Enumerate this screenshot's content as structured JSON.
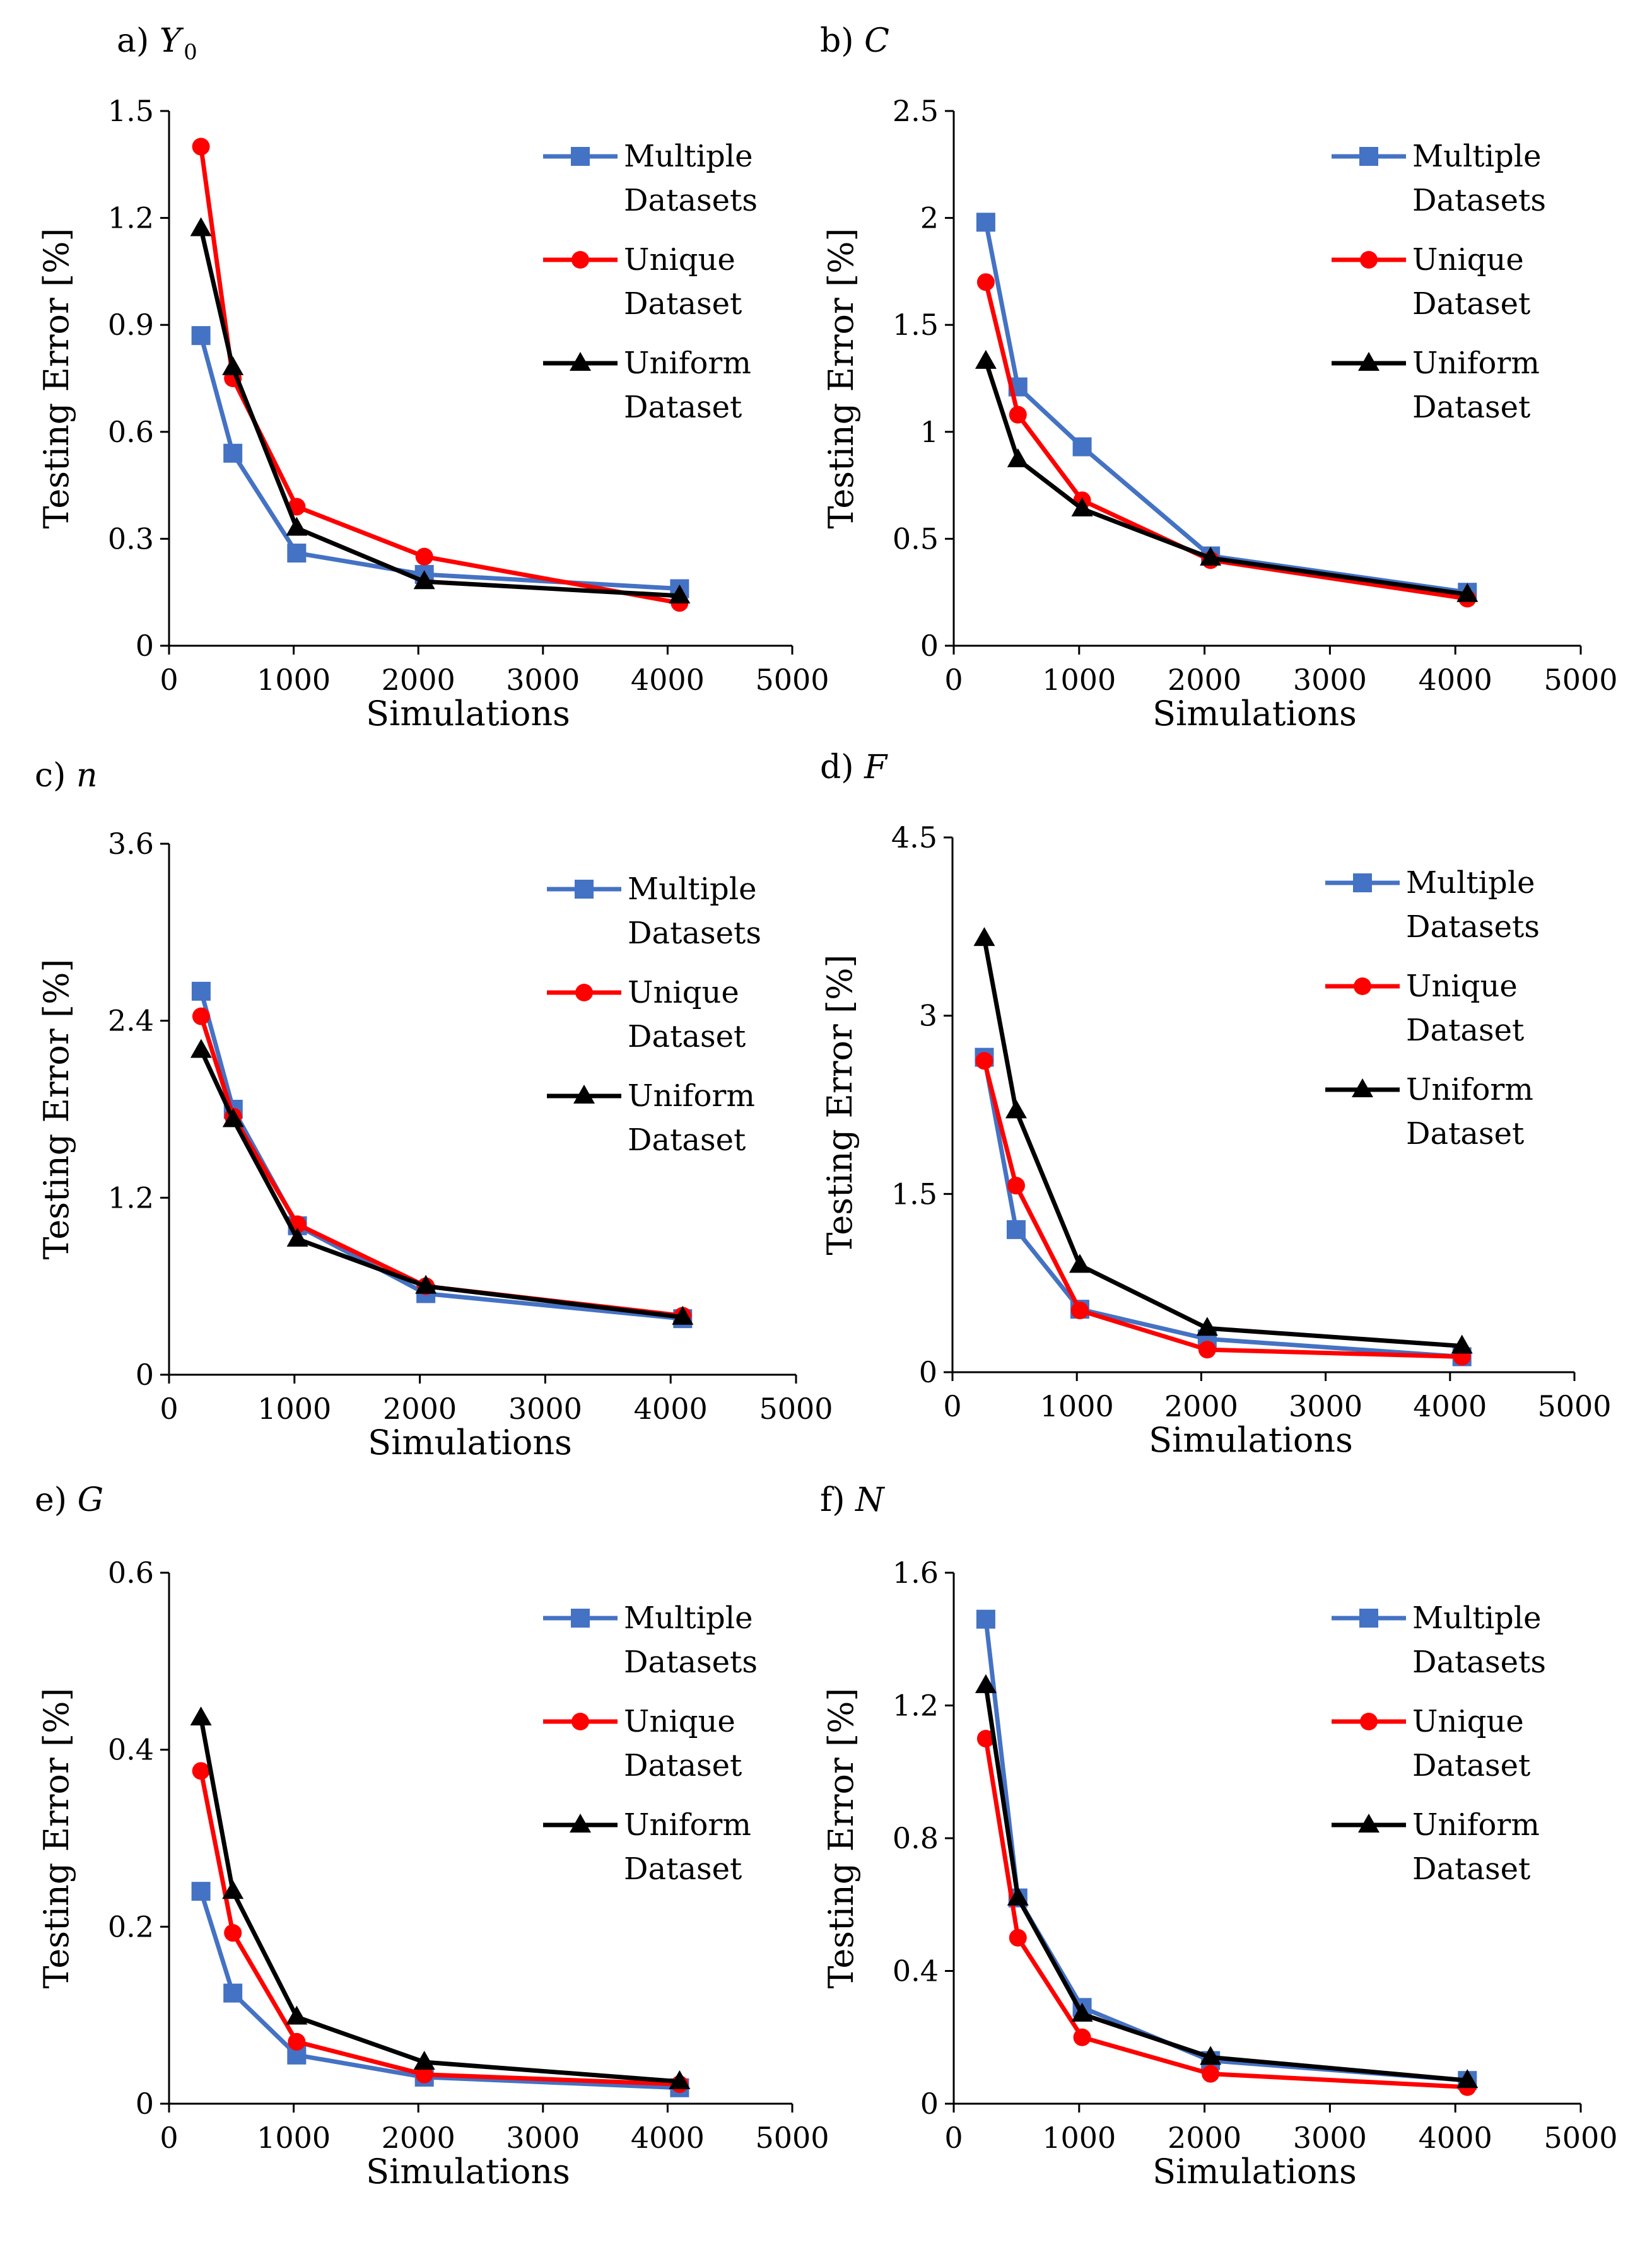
{
  "legend_entries": [
    {
      "line1": "Multiple",
      "line2": "Datasets",
      "color": "#4472C4",
      "marker": "square"
    },
    {
      "line1": "Unique",
      "line2": "Dataset",
      "color": "#FF0000",
      "marker": "circle"
    },
    {
      "line1": "Uniform",
      "line2": "Dataset",
      "color": "#000000",
      "marker": "triangle"
    }
  ],
  "chart_data": [
    {
      "type": "line",
      "panel_label": "a)",
      "parameter": "Y",
      "parameter_sub": "0",
      "xlabel": "Simulations",
      "ylabel": "Testing Error [%]",
      "xlim": [
        0,
        5000
      ],
      "xticks": [
        "0",
        "1000",
        "2000",
        "3000",
        "4000",
        "5000"
      ],
      "ylim": [
        0,
        1.5
      ],
      "yticks": [
        "0",
        "0.3",
        "0.6",
        "0.9",
        "1.2",
        "1.5"
      ],
      "x": [
        256,
        512,
        1024,
        2048,
        4096
      ],
      "series": [
        {
          "name": "Multiple Datasets",
          "values": [
            0.87,
            0.54,
            0.26,
            0.2,
            0.16
          ]
        },
        {
          "name": "Unique Dataset",
          "values": [
            1.4,
            0.75,
            0.39,
            0.25,
            0.12
          ]
        },
        {
          "name": "Uniform Dataset",
          "values": [
            1.17,
            0.78,
            0.33,
            0.18,
            0.14
          ]
        }
      ]
    },
    {
      "type": "line",
      "panel_label": "b)",
      "parameter": "C",
      "parameter_sub": "",
      "xlabel": "Simulations",
      "ylabel": "Testing Error [%]",
      "xlim": [
        0,
        5000
      ],
      "xticks": [
        "0",
        "1000",
        "2000",
        "3000",
        "4000",
        "5000"
      ],
      "ylim": [
        0,
        2.5
      ],
      "yticks": [
        "0",
        "0.5",
        "1",
        "1.5",
        "2",
        "2.5"
      ],
      "x": [
        256,
        512,
        1024,
        2048,
        4096
      ],
      "series": [
        {
          "name": "Multiple Datasets",
          "values": [
            1.98,
            1.21,
            0.93,
            0.42,
            0.25
          ]
        },
        {
          "name": "Unique Dataset",
          "values": [
            1.7,
            1.08,
            0.68,
            0.4,
            0.22
          ]
        },
        {
          "name": "Uniform Dataset",
          "values": [
            1.33,
            0.87,
            0.64,
            0.41,
            0.24
          ]
        }
      ]
    },
    {
      "type": "line",
      "panel_label": "c)",
      "parameter": "n",
      "parameter_sub": "",
      "xlabel": "Simulations",
      "ylabel": "Testing Error [%]",
      "xlim": [
        0,
        5000
      ],
      "xticks": [
        "0",
        "1000",
        "2000",
        "3000",
        "4000",
        "5000"
      ],
      "ylim": [
        0,
        3.6
      ],
      "yticks": [
        "0",
        "1.2",
        "2.4",
        "3.6"
      ],
      "x": [
        256,
        512,
        1024,
        2048,
        4096
      ],
      "series": [
        {
          "name": "Multiple Datasets",
          "values": [
            2.6,
            1.8,
            1.01,
            0.55,
            0.38
          ]
        },
        {
          "name": "Unique Dataset",
          "values": [
            2.43,
            1.75,
            1.02,
            0.6,
            0.4
          ]
        },
        {
          "name": "Uniform Dataset",
          "values": [
            2.2,
            1.73,
            0.92,
            0.6,
            0.39
          ]
        }
      ]
    },
    {
      "type": "line",
      "panel_label": "d)",
      "parameter": "F",
      "parameter_sub": "",
      "xlabel": "Simulations",
      "ylabel": "Testing Error [%]",
      "xlim": [
        0,
        5000
      ],
      "xticks": [
        "0",
        "1000",
        "2000",
        "3000",
        "4000",
        "5000"
      ],
      "ylim": [
        0,
        4.5
      ],
      "yticks": [
        "0",
        "1.5",
        "3",
        "4.5"
      ],
      "x": [
        256,
        512,
        1024,
        2048,
        4096
      ],
      "series": [
        {
          "name": "Multiple Datasets",
          "values": [
            2.65,
            1.2,
            0.53,
            0.28,
            0.13
          ]
        },
        {
          "name": "Unique Dataset",
          "values": [
            2.62,
            1.57,
            0.52,
            0.19,
            0.13
          ]
        },
        {
          "name": "Uniform Dataset",
          "values": [
            3.65,
            2.2,
            0.9,
            0.37,
            0.22
          ]
        }
      ]
    },
    {
      "type": "line",
      "panel_label": "e)",
      "parameter": "G",
      "parameter_sub": "",
      "xlabel": "Simulations",
      "ylabel": "Testing Error [%]",
      "xlim": [
        0,
        5000
      ],
      "xticks": [
        "0",
        "1000",
        "2000",
        "3000",
        "4000",
        "5000"
      ],
      "ylim": [
        0,
        0.6
      ],
      "yticks": [
        "0",
        "0.2",
        "0.4",
        "0.6"
      ],
      "x": [
        256,
        512,
        1024,
        2048,
        4096
      ],
      "series": [
        {
          "name": "Multiple Datasets",
          "values": [
            0.24,
            0.125,
            0.055,
            0.03,
            0.018
          ]
        },
        {
          "name": "Unique Dataset",
          "values": [
            0.376,
            0.193,
            0.07,
            0.033,
            0.022
          ]
        },
        {
          "name": "Uniform Dataset",
          "values": [
            0.436,
            0.24,
            0.098,
            0.047,
            0.025
          ]
        }
      ]
    },
    {
      "type": "line",
      "panel_label": "f)",
      "parameter": "N",
      "parameter_sub": "",
      "xlabel": "Simulations",
      "ylabel": "Testing Error [%]",
      "xlim": [
        0,
        5000
      ],
      "xticks": [
        "0",
        "1000",
        "2000",
        "3000",
        "4000",
        "5000"
      ],
      "ylim": [
        0,
        1.6
      ],
      "yticks": [
        "0",
        "0.4",
        "0.8",
        "1.2",
        "1.6"
      ],
      "x": [
        256,
        512,
        1024,
        2048,
        4096
      ],
      "series": [
        {
          "name": "Multiple Datasets",
          "values": [
            1.46,
            0.62,
            0.29,
            0.13,
            0.07
          ]
        },
        {
          "name": "Unique Dataset",
          "values": [
            1.1,
            0.5,
            0.2,
            0.09,
            0.05
          ]
        },
        {
          "name": "Uniform Dataset",
          "values": [
            1.26,
            0.62,
            0.27,
            0.14,
            0.07
          ]
        }
      ]
    }
  ]
}
